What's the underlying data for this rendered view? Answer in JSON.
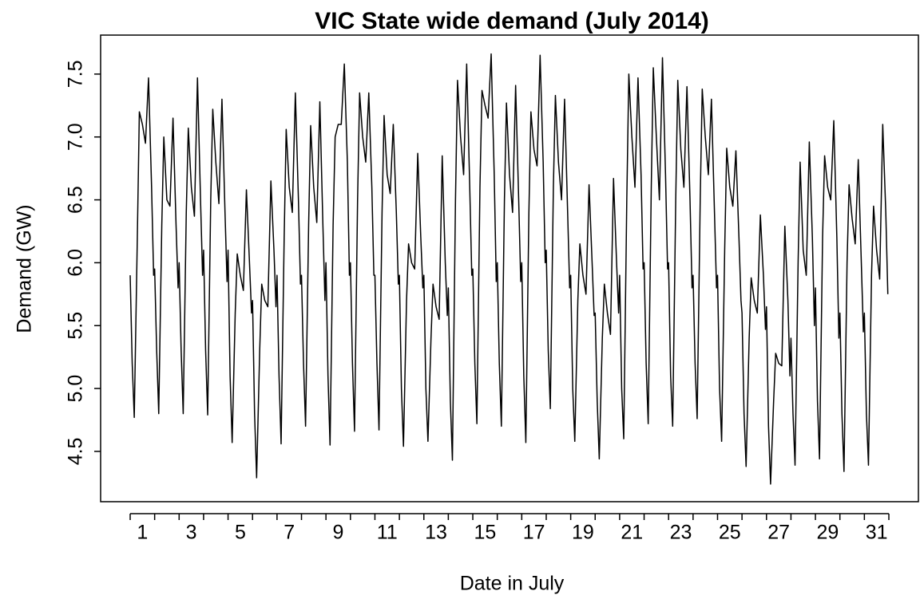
{
  "chart_data": {
    "type": "line",
    "title": "VIC State wide demand (July 2014)",
    "x_label": "Date in July",
    "y_label": "Demand (GW)",
    "color": "#000000",
    "xlim": [
      -0.24,
      33.24
    ],
    "ylim": [
      4.1,
      7.81
    ],
    "xticks": [
      {
        "value": 1.5,
        "label": "1"
      },
      {
        "value": 3.5,
        "label": "3"
      },
      {
        "value": 5.5,
        "label": "5"
      },
      {
        "value": 7.5,
        "label": "7"
      },
      {
        "value": 9.5,
        "label": "9"
      },
      {
        "value": 11.5,
        "label": "11"
      },
      {
        "value": 13.5,
        "label": "13"
      },
      {
        "value": 15.5,
        "label": "15"
      },
      {
        "value": 17.5,
        "label": "17"
      },
      {
        "value": 19.5,
        "label": "19"
      },
      {
        "value": 21.5,
        "label": "21"
      },
      {
        "value": 23.5,
        "label": "23"
      },
      {
        "value": 25.5,
        "label": "25"
      },
      {
        "value": 27.5,
        "label": "27"
      },
      {
        "value": 29.5,
        "label": "29"
      },
      {
        "value": 31.5,
        "label": "31"
      }
    ],
    "xticks_minor": [
      1,
      2,
      3,
      4,
      5,
      6,
      7,
      8,
      9,
      10,
      11,
      12,
      13,
      14,
      15,
      16,
      17,
      18,
      19,
      20,
      21,
      22,
      23,
      24,
      25,
      26,
      27,
      28,
      29,
      30,
      31,
      32
    ],
    "yticks": [
      4.5,
      {
        "value": 5,
        "label": "5.0"
      },
      5.5,
      {
        "value": 6,
        "label": "6.0"
      },
      6.5,
      {
        "value": 7,
        "label": "7.0"
      },
      7.5
    ],
    "x": [
      1,
      1.083,
      1.167,
      1.292,
      1.375,
      1.5,
      1.625,
      1.75,
      1.875,
      1.958,
      2,
      2.083,
      2.167,
      2.292,
      2.375,
      2.5,
      2.625,
      2.75,
      2.875,
      2.958,
      3,
      3.083,
      3.167,
      3.292,
      3.375,
      3.5,
      3.625,
      3.75,
      3.875,
      3.958,
      4,
      4.083,
      4.167,
      4.292,
      4.375,
      4.5,
      4.625,
      4.75,
      4.875,
      4.958,
      5,
      5.083,
      5.167,
      5.292,
      5.375,
      5.5,
      5.625,
      5.75,
      5.875,
      5.958,
      6,
      6.083,
      6.167,
      6.292,
      6.375,
      6.5,
      6.625,
      6.75,
      6.875,
      6.958,
      7,
      7.083,
      7.167,
      7.292,
      7.375,
      7.5,
      7.625,
      7.75,
      7.875,
      7.958,
      8,
      8.083,
      8.167,
      8.292,
      8.375,
      8.5,
      8.625,
      8.75,
      8.875,
      8.958,
      9,
      9.083,
      9.167,
      9.292,
      9.375,
      9.5,
      9.625,
      9.75,
      9.875,
      9.958,
      10,
      10.083,
      10.167,
      10.292,
      10.375,
      10.5,
      10.625,
      10.75,
      10.875,
      10.958,
      11,
      11.083,
      11.167,
      11.292,
      11.375,
      11.5,
      11.625,
      11.75,
      11.875,
      11.958,
      12,
      12.083,
      12.167,
      12.292,
      12.375,
      12.5,
      12.625,
      12.75,
      12.875,
      12.958,
      13,
      13.083,
      13.167,
      13.292,
      13.375,
      13.5,
      13.625,
      13.75,
      13.875,
      13.958,
      14,
      14.083,
      14.167,
      14.292,
      14.375,
      14.5,
      14.625,
      14.75,
      14.875,
      14.958,
      15,
      15.083,
      15.167,
      15.292,
      15.375,
      15.5,
      15.625,
      15.75,
      15.875,
      15.958,
      16,
      16.083,
      16.167,
      16.292,
      16.375,
      16.5,
      16.625,
      16.75,
      16.875,
      16.958,
      17,
      17.083,
      17.167,
      17.292,
      17.375,
      17.5,
      17.625,
      17.75,
      17.875,
      17.958,
      18,
      18.083,
      18.167,
      18.292,
      18.375,
      18.5,
      18.625,
      18.75,
      18.875,
      18.958,
      19,
      19.083,
      19.167,
      19.292,
      19.375,
      19.5,
      19.625,
      19.75,
      19.875,
      19.958,
      20,
      20.083,
      20.167,
      20.292,
      20.375,
      20.5,
      20.625,
      20.75,
      20.875,
      20.958,
      21,
      21.083,
      21.167,
      21.292,
      21.375,
      21.5,
      21.625,
      21.75,
      21.875,
      21.958,
      22,
      22.083,
      22.167,
      22.292,
      22.375,
      22.5,
      22.625,
      22.75,
      22.875,
      22.958,
      23,
      23.083,
      23.167,
      23.292,
      23.375,
      23.5,
      23.625,
      23.75,
      23.875,
      23.958,
      24,
      24.083,
      24.167,
      24.292,
      24.375,
      24.5,
      24.625,
      24.75,
      24.875,
      24.958,
      25,
      25.083,
      25.167,
      25.292,
      25.375,
      25.5,
      25.625,
      25.75,
      25.875,
      25.958,
      26,
      26.083,
      26.167,
      26.292,
      26.375,
      26.5,
      26.625,
      26.75,
      26.875,
      26.958,
      27,
      27.083,
      27.167,
      27.292,
      27.375,
      27.5,
      27.625,
      27.75,
      27.875,
      27.958,
      28,
      28.083,
      28.167,
      28.292,
      28.375,
      28.5,
      28.625,
      28.75,
      28.875,
      28.958,
      29,
      29.083,
      29.167,
      29.292,
      29.375,
      29.5,
      29.625,
      29.75,
      29.875,
      29.958,
      30,
      30.083,
      30.167,
      30.292,
      30.375,
      30.5,
      30.625,
      30.75,
      30.875,
      30.958,
      31,
      31.083,
      31.167,
      31.292,
      31.375,
      31.5,
      31.625,
      31.75,
      31.875,
      31.958
    ],
    "values": [
      5.9,
      5.2,
      4.77,
      6.2,
      7.2,
      7.1,
      6.95,
      7.47,
      6.6,
      5.9,
      5.95,
      5.3,
      4.8,
      6.3,
      7.0,
      6.5,
      6.45,
      7.15,
      6.3,
      5.8,
      6.0,
      5.3,
      4.8,
      6.4,
      7.07,
      6.6,
      6.37,
      7.47,
      6.5,
      5.9,
      6.1,
      5.3,
      4.79,
      6.5,
      7.22,
      6.8,
      6.47,
      7.3,
      6.4,
      5.85,
      6.1,
      5.1,
      4.57,
      5.6,
      6.07,
      5.9,
      5.78,
      6.58,
      6.0,
      5.6,
      5.7,
      4.8,
      4.29,
      5.3,
      5.83,
      5.7,
      5.65,
      6.65,
      6.1,
      5.65,
      5.9,
      5.1,
      4.56,
      6.2,
      7.06,
      6.6,
      6.4,
      7.35,
      6.5,
      5.83,
      5.9,
      5.2,
      4.7,
      6.3,
      7.09,
      6.6,
      6.32,
      7.28,
      6.3,
      5.7,
      6.0,
      5.1,
      4.55,
      6.3,
      7.0,
      7.1,
      7.1,
      7.58,
      6.8,
      5.9,
      6.0,
      5.2,
      4.66,
      6.5,
      7.35,
      7.0,
      6.8,
      7.35,
      6.6,
      5.9,
      5.9,
      5.2,
      4.67,
      6.4,
      7.17,
      6.7,
      6.55,
      7.1,
      6.4,
      5.83,
      5.9,
      5.0,
      4.54,
      5.7,
      6.15,
      6.0,
      5.95,
      6.87,
      6.2,
      5.8,
      5.9,
      5.0,
      4.58,
      5.4,
      5.83,
      5.65,
      5.55,
      6.85,
      6.0,
      5.58,
      5.8,
      4.9,
      4.43,
      6.5,
      7.45,
      7.0,
      6.7,
      7.58,
      6.6,
      5.9,
      5.95,
      5.2,
      4.72,
      6.6,
      7.37,
      7.25,
      7.15,
      7.66,
      6.7,
      5.85,
      6.0,
      5.2,
      4.7,
      6.5,
      7.27,
      6.7,
      6.4,
      7.41,
      6.5,
      5.85,
      6.0,
      5.1,
      4.57,
      6.4,
      7.2,
      6.9,
      6.77,
      7.65,
      6.8,
      6.0,
      6.1,
      5.3,
      4.84,
      6.6,
      7.33,
      6.8,
      6.5,
      7.3,
      6.4,
      5.8,
      5.9,
      5.0,
      4.58,
      5.7,
      6.15,
      5.9,
      5.75,
      6.62,
      6.0,
      5.58,
      5.6,
      4.9,
      4.44,
      5.4,
      5.83,
      5.6,
      5.43,
      6.67,
      6.0,
      5.6,
      5.9,
      5.0,
      4.6,
      6.5,
      7.5,
      7.0,
      6.6,
      7.47,
      6.7,
      5.95,
      6.0,
      5.2,
      4.72,
      6.6,
      7.55,
      7.0,
      6.5,
      7.63,
      6.7,
      5.95,
      6.0,
      5.1,
      4.7,
      6.5,
      7.45,
      6.9,
      6.6,
      7.4,
      6.5,
      5.8,
      5.9,
      5.2,
      4.76,
      6.5,
      7.38,
      7.0,
      6.7,
      7.3,
      6.4,
      5.8,
      5.9,
      5.0,
      4.58,
      6.1,
      6.91,
      6.6,
      6.45,
      6.89,
      6.2,
      5.7,
      5.6,
      4.8,
      4.38,
      5.4,
      5.88,
      5.7,
      5.6,
      6.38,
      5.9,
      5.47,
      5.65,
      4.7,
      4.24,
      4.9,
      5.28,
      5.2,
      5.18,
      6.29,
      5.7,
      5.1,
      5.4,
      4.8,
      4.39,
      6.0,
      6.8,
      6.1,
      5.9,
      6.96,
      6.2,
      5.5,
      5.8,
      4.9,
      4.44,
      6.2,
      6.85,
      6.6,
      6.5,
      7.13,
      6.2,
      5.4,
      5.6,
      4.8,
      4.34,
      6.0,
      6.62,
      6.35,
      6.15,
      6.82,
      6.0,
      5.45,
      5.6,
      4.8,
      4.39,
      5.9,
      6.45,
      6.1,
      5.87,
      7.1,
      6.4,
      5.75
    ]
  }
}
